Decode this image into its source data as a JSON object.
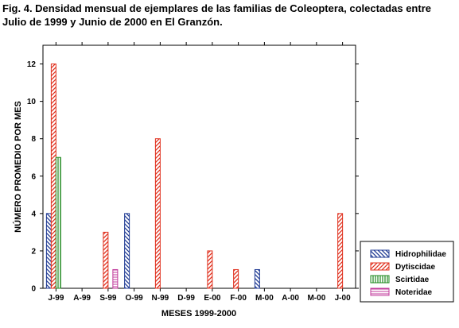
{
  "caption": "Fig. 4. Densidad mensual de ejemplares de las familias de Coleoptera, colectadas entre Julio de 1999 y Junio de 2000 en El Granzón.",
  "chart_data": {
    "type": "bar",
    "title": "",
    "xlabel": "MESES 1999-2000",
    "ylabel": "NÚMERO PROMEDIO POR MES",
    "ylim": [
      0,
      13
    ],
    "yticks": [
      0,
      2,
      4,
      6,
      8,
      10,
      12
    ],
    "grid": false,
    "legend_position": "bottom-right",
    "categories": [
      "J-99",
      "A-99",
      "S-99",
      "O-99",
      "N-99",
      "D-99",
      "E-00",
      "F-00",
      "M-00",
      "A-00",
      "M-00",
      "J-00"
    ],
    "series": [
      {
        "name": "Hidrophilidae",
        "color": "#1f3a93",
        "pattern": "diagonal-back",
        "values": [
          4,
          0,
          0,
          4,
          0,
          0,
          0,
          0,
          1,
          0,
          0,
          0
        ]
      },
      {
        "name": "Dytiscidae",
        "color": "#e0301e",
        "pattern": "diagonal-forward",
        "values": [
          12,
          0,
          3,
          0,
          8,
          0,
          2,
          1,
          0,
          0,
          0,
          4
        ]
      },
      {
        "name": "Scirtidae",
        "color": "#1e8a1e",
        "pattern": "vertical",
        "values": [
          7,
          0,
          0,
          0,
          0,
          0,
          0,
          0,
          0,
          0,
          0,
          0
        ]
      },
      {
        "name": "Noteridae",
        "color": "#c0399b",
        "pattern": "horizontal",
        "values": [
          0,
          0,
          1,
          0,
          0,
          0,
          0,
          0,
          0,
          0,
          0,
          0
        ]
      }
    ]
  }
}
